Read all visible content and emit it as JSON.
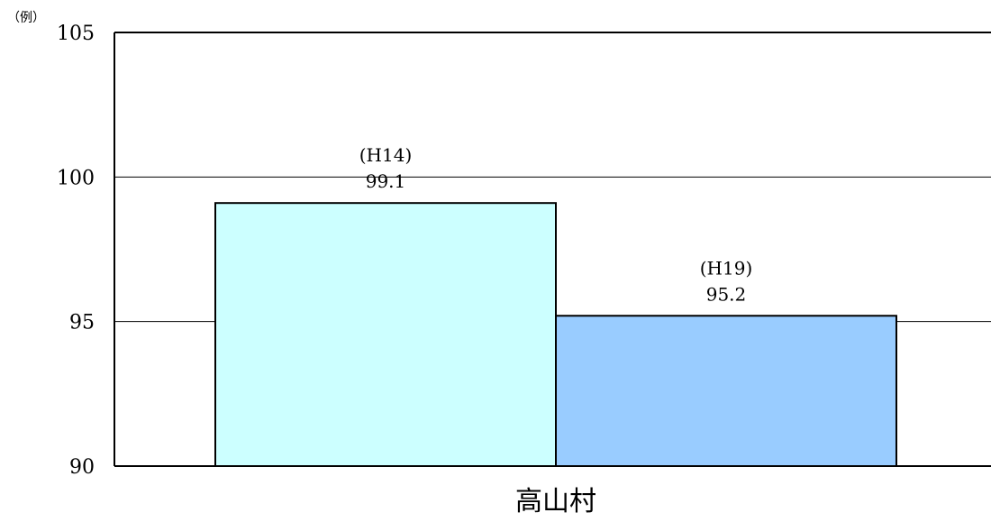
{
  "chart_data": {
    "type": "bar",
    "title": "",
    "xlabel": "",
    "ylabel": "",
    "y_unit": "（例）",
    "categories": [
      "高山村"
    ],
    "ylim": [
      90,
      105
    ],
    "yticks": [
      90,
      95,
      100,
      105
    ],
    "grid": true,
    "series": [
      {
        "name": "(H14)",
        "values": [
          99.1
        ],
        "value_label": "99.1",
        "color": "#ccffff"
      },
      {
        "name": "(H19)",
        "values": [
          95.2
        ],
        "value_label": "95.2",
        "color": "#99ccff"
      }
    ],
    "colors": {
      "axis": "#000000",
      "grid": "#000000",
      "bar_border": "#000000",
      "background": "#ffffff"
    }
  }
}
